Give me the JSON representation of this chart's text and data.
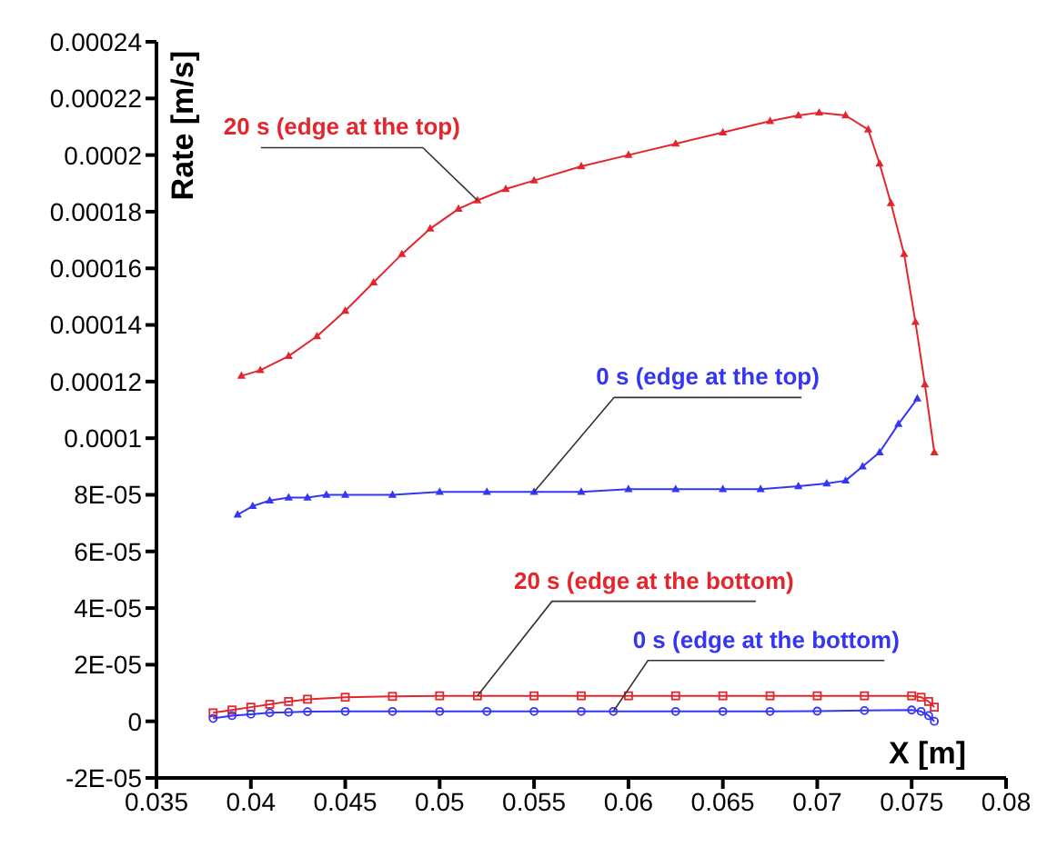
{
  "chart_data": {
    "type": "line",
    "xlabel": "X [m]",
    "ylabel": "Rate [m/s]",
    "xlim": [
      0.035,
      0.08
    ],
    "xticks": [
      0.035,
      0.04,
      0.045,
      0.05,
      0.055,
      0.06,
      0.065,
      0.07,
      0.075,
      0.08
    ],
    "ylim": [
      -2e-05,
      0.00024
    ],
    "yticks": [
      {
        "value": -2e-05,
        "label": "-2E-05"
      },
      0,
      {
        "value": 2e-05,
        "label": "2E-05"
      },
      {
        "value": 4e-05,
        "label": "4E-05"
      },
      {
        "value": 6e-05,
        "label": "6E-05"
      },
      {
        "value": 8e-05,
        "label": "8E-05"
      },
      0.0001,
      0.00012,
      0.00014,
      0.00016,
      0.00018,
      0.0002,
      0.00022,
      0.00024
    ],
    "series": [
      {
        "name": "20 s (edge at the top)",
        "color": "#e3262d",
        "marker": "triangle",
        "x": [
          0.0395,
          0.0405,
          0.042,
          0.0435,
          0.045,
          0.0465,
          0.048,
          0.0495,
          0.051,
          0.052,
          0.0535,
          0.055,
          0.0575,
          0.06,
          0.0625,
          0.065,
          0.0675,
          0.069,
          0.0701,
          0.0715,
          0.0727,
          0.0733,
          0.0739,
          0.0746,
          0.0752,
          0.0757,
          0.0762
        ],
        "values": [
          0.000122,
          0.000124,
          0.000129,
          0.000136,
          0.000145,
          0.000155,
          0.000165,
          0.000174,
          0.000181,
          0.000184,
          0.000188,
          0.000191,
          0.000196,
          0.0002,
          0.000204,
          0.000208,
          0.000212,
          0.000214,
          0.000215,
          0.000214,
          0.000209,
          0.000197,
          0.000183,
          0.000165,
          0.000141,
          0.000119,
          9.5e-05
        ]
      },
      {
        "name": "0 s (edge at the top)",
        "color": "#3535f5",
        "marker": "triangle",
        "x": [
          0.0393,
          0.0401,
          0.041,
          0.042,
          0.043,
          0.044,
          0.045,
          0.0475,
          0.05,
          0.0525,
          0.055,
          0.0575,
          0.06,
          0.0625,
          0.065,
          0.067,
          0.069,
          0.0705,
          0.0715,
          0.0724,
          0.0733,
          0.0743,
          0.0753
        ],
        "values": [
          7.3e-05,
          7.6e-05,
          7.8e-05,
          7.9e-05,
          7.9e-05,
          8e-05,
          8e-05,
          8e-05,
          8.1e-05,
          8.1e-05,
          8.1e-05,
          8.1e-05,
          8.2e-05,
          8.2e-05,
          8.2e-05,
          8.2e-05,
          8.3e-05,
          8.4e-05,
          8.5e-05,
          9e-05,
          9.5e-05,
          0.000105,
          0.000114
        ]
      },
      {
        "name": "20 s (edge at the bottom)",
        "color": "#e3262d",
        "marker": "square",
        "x": [
          0.038,
          0.039,
          0.04,
          0.041,
          0.042,
          0.043,
          0.045,
          0.0475,
          0.05,
          0.052,
          0.055,
          0.0575,
          0.06,
          0.0625,
          0.065,
          0.0675,
          0.07,
          0.0725,
          0.075,
          0.0755,
          0.0759,
          0.0762
        ],
        "values": [
          3e-06,
          4e-06,
          5e-06,
          6e-06,
          7e-06,
          7.8e-06,
          8.5e-06,
          8.8e-06,
          9e-06,
          9e-06,
          9e-06,
          9e-06,
          9e-06,
          9e-06,
          9e-06,
          9e-06,
          9e-06,
          9e-06,
          9e-06,
          8.5e-06,
          7e-06,
          5e-06
        ]
      },
      {
        "name": "0 s (edge at the bottom)",
        "color": "#3535f5",
        "marker": "circle",
        "x": [
          0.038,
          0.039,
          0.04,
          0.041,
          0.042,
          0.043,
          0.045,
          0.0475,
          0.05,
          0.0525,
          0.055,
          0.0575,
          0.0592,
          0.0625,
          0.065,
          0.0675,
          0.07,
          0.0725,
          0.075,
          0.0755,
          0.0759,
          0.0762
        ],
        "values": [
          1e-06,
          2e-06,
          2.5e-06,
          3e-06,
          3.2e-06,
          3.4e-06,
          3.5e-06,
          3.5e-06,
          3.5e-06,
          3.5e-06,
          3.5e-06,
          3.5e-06,
          3.5e-06,
          3.5e-06,
          3.5e-06,
          3.5e-06,
          3.6e-06,
          3.8e-06,
          4e-06,
          3.5e-06,
          2e-06,
          0
        ]
      }
    ]
  }
}
